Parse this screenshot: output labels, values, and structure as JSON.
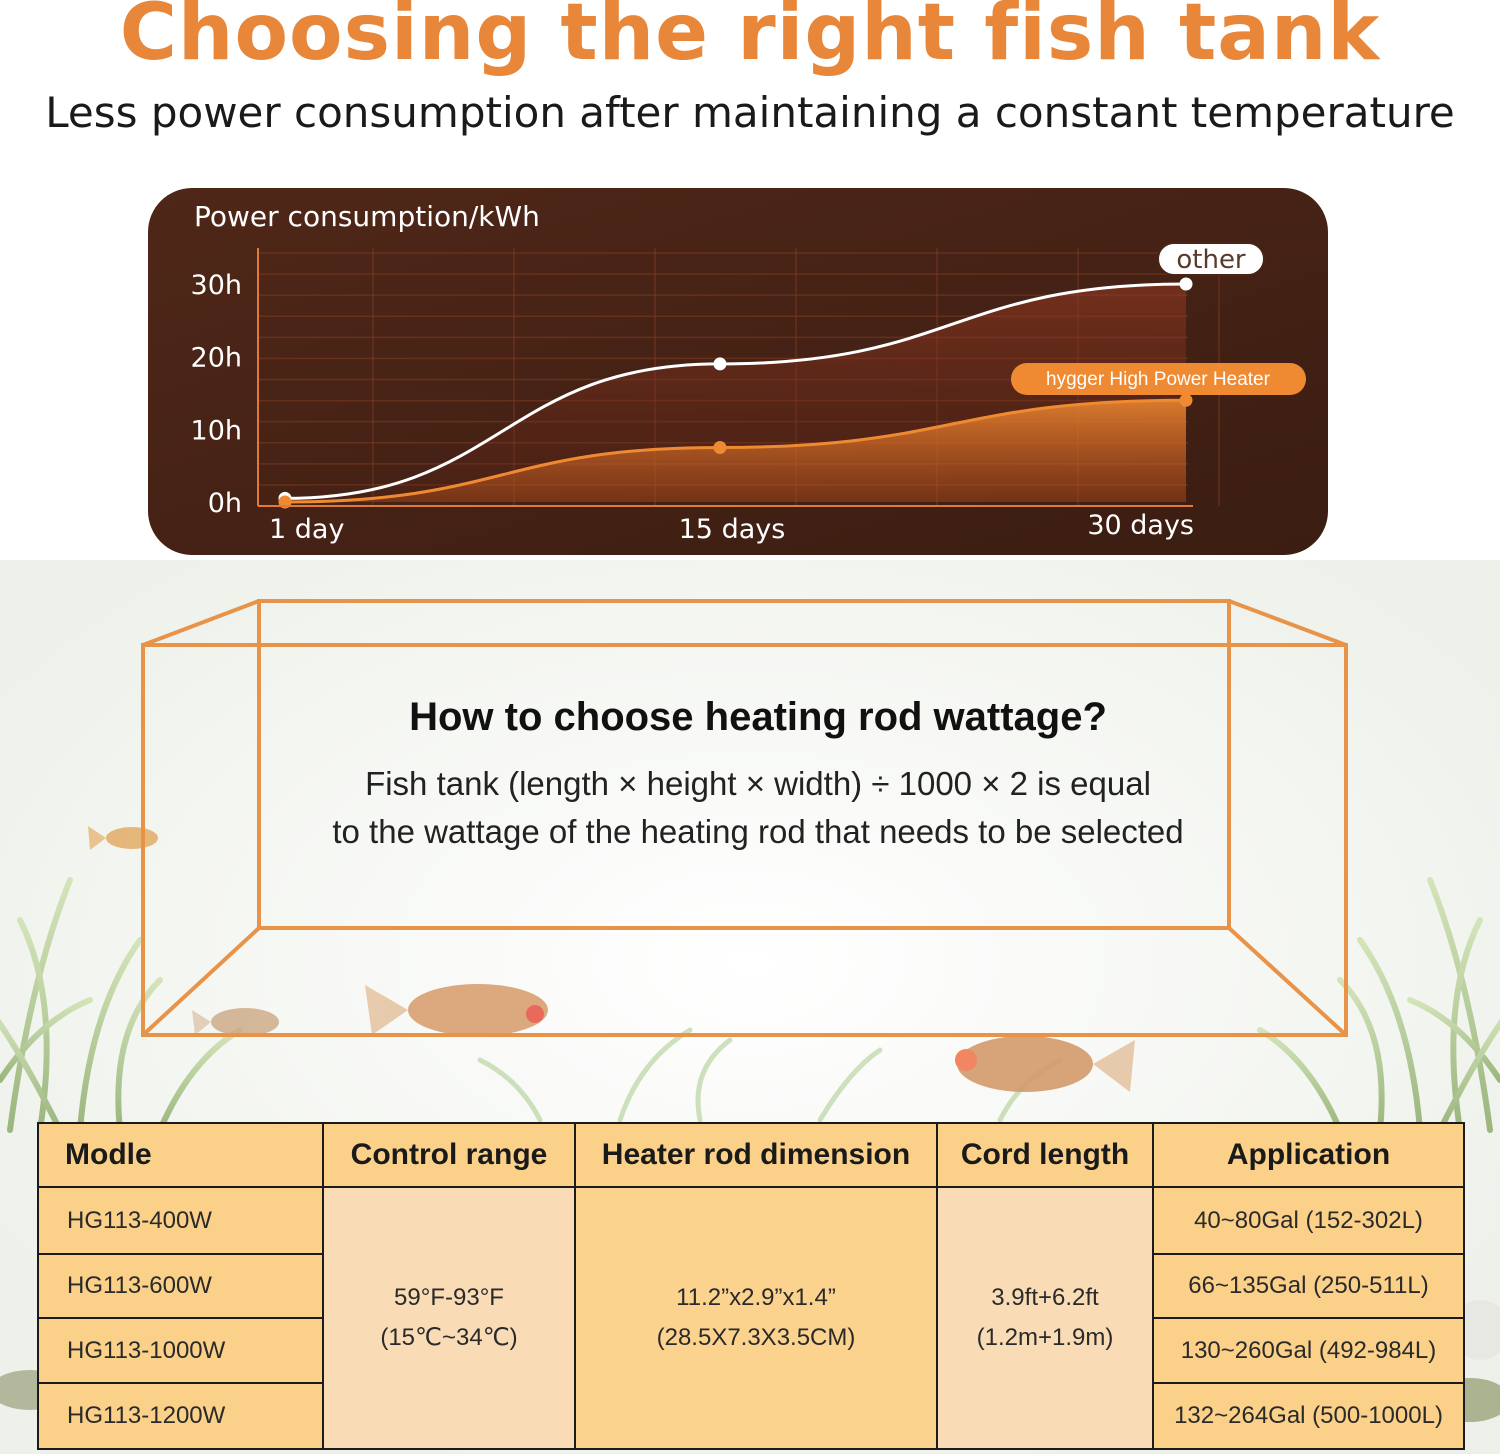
{
  "header": {
    "title": "Choosing the right fish tank",
    "subtitle": "Less power consumption after maintaining a constant temperature"
  },
  "chart_data": {
    "type": "line",
    "title": "Power consumption/kWh",
    "x_tick_labels": [
      "1 day",
      "15 days",
      "30 days"
    ],
    "x": [
      1,
      15,
      30
    ],
    "y_tick_labels": [
      "0h",
      "10h",
      "20h",
      "30h"
    ],
    "y_ticks": [
      0,
      10,
      20,
      30
    ],
    "ylim": [
      0,
      30
    ],
    "xlim": [
      1,
      30
    ],
    "grid": true,
    "series": [
      {
        "name": "other",
        "x": [
          1,
          15,
          30
        ],
        "y": [
          0.5,
          19,
          30
        ],
        "color": "#ffffff"
      },
      {
        "name": "hygger High Power Heater",
        "x": [
          1,
          15,
          30
        ],
        "y": [
          0,
          7.5,
          14
        ],
        "color": "#f08a32"
      }
    ]
  },
  "info": {
    "title": "How to choose heating rod wattage?",
    "line1": "Fish tank (length × height × width) ÷ 1000 × 2 is equal",
    "line2": "to the wattage of the heating rod that needs to be selected"
  },
  "table": {
    "headers": [
      "Modle",
      "Control range",
      "Heater rod dimension",
      "Cord length",
      "Application"
    ],
    "models": [
      "HG113-400W",
      "HG113-600W",
      "HG113-1000W",
      "HG113-1200W"
    ],
    "control_range": {
      "line1": "59°F-93°F",
      "line2": "(15℃~34℃)"
    },
    "dimension": {
      "line1": "11.2”x2.9”x1.4”",
      "line2": "(28.5X7.3X3.5CM)"
    },
    "cord": {
      "line1": "3.9ft+6.2ft",
      "line2": "(1.2m+1.9m)"
    },
    "applications": [
      "40~80Gal (152-302L)",
      "66~135Gal (250-511L)",
      "130~260Gal (492-984L)",
      "132~264Gal (500-1000L)"
    ]
  },
  "colors": {
    "accent": "#e8873a",
    "panel": "#4a2416",
    "table_header": "#fbd089",
    "table_shared": "#f9dcb6"
  }
}
